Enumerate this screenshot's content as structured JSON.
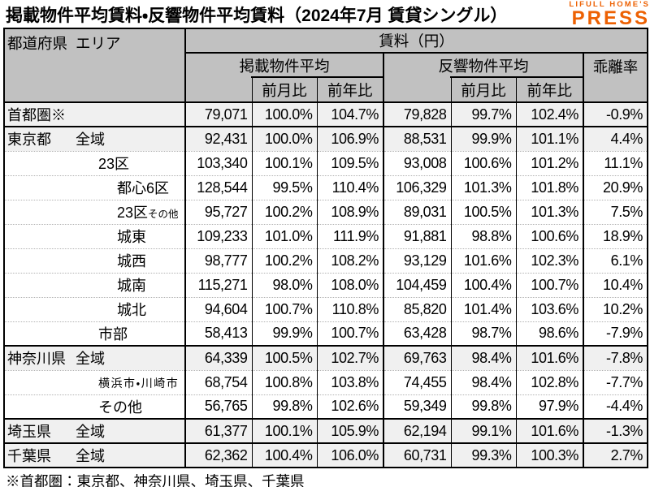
{
  "title": "掲載物件平均賃料・反響物件平均賃料（2024年7月 賃貸シングル）",
  "logo": {
    "line1": "LIFULL HOME'S",
    "line2": "PRESS",
    "color": "#ED6103"
  },
  "footnote": "※首都圏：東京都、神奈川県、埼玉県、千葉県",
  "chart_data": {
    "type": "table",
    "title": "掲載物件平均賃料・反響物件平均賃料（2024年7月 賃貸シングル）",
    "header": {
      "pref": "都道府県",
      "area": "エリア",
      "rent_unit": "賃料（円）",
      "listed_group": "掲載物件平均",
      "response_group": "反響物件平均",
      "mom": "前月比",
      "yoy": "前年比",
      "divergence": "乖離率"
    },
    "colors": {
      "header_bg": "#c1c1c1",
      "shaded_row_bg": "#f0f0f0",
      "border": "#000000",
      "logo_orange": "#ED6103"
    },
    "rows": [
      {
        "pref": "首都圏※",
        "area": "",
        "indent": 0,
        "group_start": true,
        "listed_avg": "79,071",
        "listed_mom": "100.0%",
        "listed_yoy": "104.7%",
        "response_avg": "79,828",
        "response_mom": "99.7%",
        "response_yoy": "102.4%",
        "divergence": "-0.9%"
      },
      {
        "pref": "東京都",
        "area": "全域",
        "indent": 1,
        "group_start": true,
        "listed_avg": "92,431",
        "listed_mom": "100.0%",
        "listed_yoy": "106.9%",
        "response_avg": "88,531",
        "response_mom": "99.9%",
        "response_yoy": "101.1%",
        "divergence": "4.4%"
      },
      {
        "pref": "",
        "area": "23区",
        "indent": 2,
        "group_start": false,
        "listed_avg": "103,340",
        "listed_mom": "100.1%",
        "listed_yoy": "109.5%",
        "response_avg": "93,008",
        "response_mom": "100.6%",
        "response_yoy": "101.2%",
        "divergence": "11.1%"
      },
      {
        "pref": "",
        "area": "都心6区",
        "indent": 3,
        "group_start": false,
        "listed_avg": "128,544",
        "listed_mom": "99.5%",
        "listed_yoy": "110.4%",
        "response_avg": "106,329",
        "response_mom": "101.3%",
        "response_yoy": "101.8%",
        "divergence": "20.9%"
      },
      {
        "pref": "",
        "area": "23区その他",
        "indent": 3,
        "group_start": false,
        "shrink_tail": "その他",
        "listed_avg": "95,727",
        "listed_mom": "100.2%",
        "listed_yoy": "108.9%",
        "response_avg": "89,031",
        "response_mom": "100.5%",
        "response_yoy": "101.3%",
        "divergence": "7.5%"
      },
      {
        "pref": "",
        "area": "城東",
        "indent": 3,
        "group_start": false,
        "listed_avg": "109,233",
        "listed_mom": "101.0%",
        "listed_yoy": "111.9%",
        "response_avg": "91,881",
        "response_mom": "98.8%",
        "response_yoy": "100.6%",
        "divergence": "18.9%"
      },
      {
        "pref": "",
        "area": "城西",
        "indent": 3,
        "group_start": false,
        "listed_avg": "98,777",
        "listed_mom": "100.2%",
        "listed_yoy": "108.2%",
        "response_avg": "93,129",
        "response_mom": "101.6%",
        "response_yoy": "102.3%",
        "divergence": "6.1%"
      },
      {
        "pref": "",
        "area": "城南",
        "indent": 3,
        "group_start": false,
        "listed_avg": "115,271",
        "listed_mom": "98.0%",
        "listed_yoy": "108.0%",
        "response_avg": "104,459",
        "response_mom": "100.4%",
        "response_yoy": "100.7%",
        "divergence": "10.4%"
      },
      {
        "pref": "",
        "area": "城北",
        "indent": 3,
        "group_start": false,
        "listed_avg": "94,604",
        "listed_mom": "100.7%",
        "listed_yoy": "110.8%",
        "response_avg": "85,820",
        "response_mom": "101.4%",
        "response_yoy": "103.6%",
        "divergence": "10.2%"
      },
      {
        "pref": "",
        "area": "市部",
        "indent": 2,
        "group_start": false,
        "listed_avg": "58,413",
        "listed_mom": "99.9%",
        "listed_yoy": "100.7%",
        "response_avg": "63,428",
        "response_mom": "98.7%",
        "response_yoy": "98.6%",
        "divergence": "-7.9%"
      },
      {
        "pref": "神奈川県",
        "area": "全域",
        "indent": 1,
        "group_start": true,
        "listed_avg": "64,339",
        "listed_mom": "100.5%",
        "listed_yoy": "102.7%",
        "response_avg": "69,763",
        "response_mom": "98.4%",
        "response_yoy": "101.6%",
        "divergence": "-7.8%"
      },
      {
        "pref": "",
        "area": "横浜市・川崎市",
        "indent": 2,
        "group_start": false,
        "shrink_all": true,
        "listed_avg": "68,754",
        "listed_mom": "100.8%",
        "listed_yoy": "103.8%",
        "response_avg": "74,455",
        "response_mom": "98.4%",
        "response_yoy": "102.8%",
        "divergence": "-7.7%"
      },
      {
        "pref": "",
        "area": "その他",
        "indent": 2,
        "group_start": false,
        "listed_avg": "56,765",
        "listed_mom": "99.8%",
        "listed_yoy": "102.6%",
        "response_avg": "59,349",
        "response_mom": "99.8%",
        "response_yoy": "97.9%",
        "divergence": "-4.4%"
      },
      {
        "pref": "埼玉県",
        "area": "全域",
        "indent": 1,
        "group_start": true,
        "listed_avg": "61,377",
        "listed_mom": "100.1%",
        "listed_yoy": "105.9%",
        "response_avg": "62,194",
        "response_mom": "99.1%",
        "response_yoy": "101.6%",
        "divergence": "-1.3%"
      },
      {
        "pref": "千葉県",
        "area": "全域",
        "indent": 1,
        "group_start": true,
        "listed_avg": "62,362",
        "listed_mom": "100.4%",
        "listed_yoy": "106.0%",
        "response_avg": "60,731",
        "response_mom": "99.3%",
        "response_yoy": "100.3%",
        "divergence": "2.7%"
      }
    ],
    "footnote": "※首都圏：東京都、神奈川県、埼玉県、千葉県"
  }
}
